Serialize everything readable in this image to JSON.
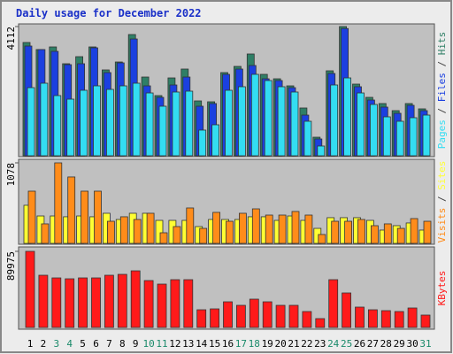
{
  "title": "Daily usage for December 2022",
  "separator": " / ",
  "chart_data": [
    {
      "type": "bar",
      "ylim": [
        0,
        4112
      ],
      "yticks": [
        4112
      ],
      "series": [
        {
          "name": "Hits",
          "color": "#2f7f66",
          "values": [
            3605,
            3380,
            3464,
            2929,
            3154,
            3464,
            2732,
            2985,
            3858,
            2506,
            1915,
            2478,
            2760,
            1746,
            1718,
            2647,
            2844,
            3239,
            2591,
            2450,
            2225,
            1521,
            591,
            2704,
            4112,
            2281,
            1859,
            1662,
            1436,
            1662,
            1493
          ]
        },
        {
          "name": "Files",
          "color": "#1b40e0",
          "values": [
            3492,
            3380,
            3323,
            2900,
            2929,
            3436,
            2647,
            2957,
            3717,
            2225,
            1859,
            2253,
            2506,
            1577,
            1662,
            2591,
            2760,
            2873,
            2450,
            2394,
            2168,
            1295,
            535,
            2619,
            4050,
            2197,
            1774,
            1549,
            1352,
            1605,
            1436
          ]
        },
        {
          "name": "Pages",
          "color": "#33ddf2",
          "values": [
            2168,
            2309,
            1915,
            1802,
            2084,
            2225,
            2112,
            2225,
            2309,
            1999,
            1577,
            2028,
            2056,
            817,
            986,
            2084,
            2197,
            2591,
            2394,
            2197,
            2028,
            1098,
            310,
            2253,
            2478,
            1999,
            1633,
            1239,
            1098,
            1211,
            1295
          ]
        }
      ]
    },
    {
      "type": "bar",
      "ylim": [
        0,
        1078
      ],
      "yticks": [
        1078
      ],
      "series": [
        {
          "name": "Sites",
          "color": "#ffff33",
          "values": [
            510,
            367,
            367,
            356,
            367,
            356,
            403,
            320,
            403,
            403,
            308,
            308,
            308,
            225,
            320,
            320,
            320,
            356,
            356,
            308,
            367,
            308,
            201,
            344,
            344,
            344,
            308,
            178,
            237,
            273,
            178
          ]
        },
        {
          "name": "Visits",
          "color": "#ff8c1a",
          "values": [
            699,
            261,
            1078,
            889,
            699,
            699,
            296,
            356,
            320,
            403,
            142,
            225,
            474,
            201,
            415,
            296,
            403,
            462,
            379,
            379,
            427,
            379,
            119,
            296,
            296,
            320,
            237,
            261,
            201,
            332,
            296
          ]
        }
      ]
    },
    {
      "type": "bar",
      "ylim": [
        0,
        89975
      ],
      "yticks": [
        89975
      ],
      "categories": [
        "1",
        "2",
        "3",
        "4",
        "5",
        "6",
        "7",
        "8",
        "9",
        "10",
        "11",
        "12",
        "13",
        "14",
        "15",
        "16",
        "17",
        "18",
        "19",
        "20",
        "21",
        "22",
        "23",
        "24",
        "25",
        "26",
        "27",
        "28",
        "29",
        "30",
        "31"
      ],
      "category_colors": [
        "#000",
        "#000",
        "#1a8a6a",
        "#1a8a6a",
        "#000",
        "#000",
        "#000",
        "#000",
        "#000",
        "#1a8a6a",
        "#1a8a6a",
        "#000",
        "#000",
        "#000",
        "#000",
        "#000",
        "#1a8a6a",
        "#1a8a6a",
        "#000",
        "#000",
        "#000",
        "#000",
        "#000",
        "#1a8a6a",
        "#1a8a6a",
        "#000",
        "#000",
        "#000",
        "#000",
        "#000",
        "#1a8a6a"
      ],
      "series": [
        {
          "name": "KBytes",
          "color": "#ff1a1a",
          "values": [
            89975,
            61714,
            58576,
            57530,
            58576,
            58576,
            61714,
            62760,
            66944,
            55438,
            51254,
            56484,
            56484,
            20920,
            21966,
            30334,
            26150,
            33472,
            30334,
            26150,
            26150,
            18828,
            10460,
            56484,
            40794,
            24058,
            20920,
            19874,
            18828,
            23012,
            14644
          ]
        }
      ]
    }
  ]
}
